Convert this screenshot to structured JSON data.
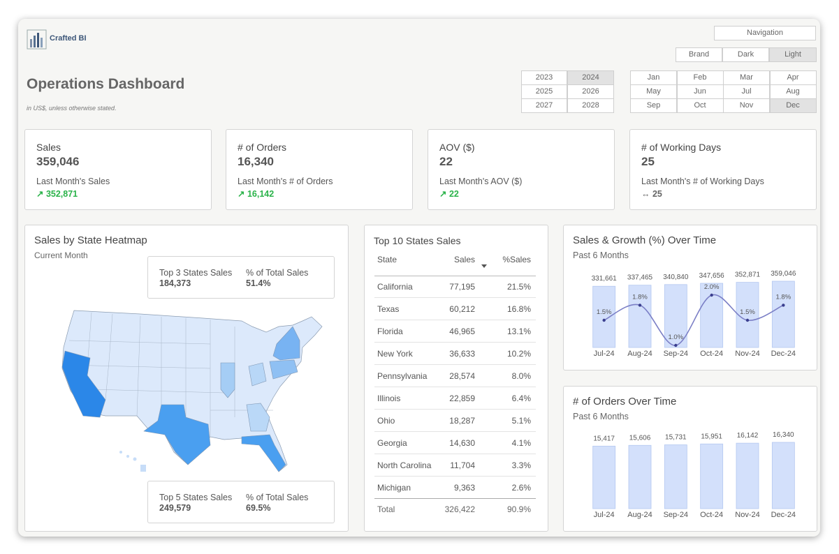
{
  "header": {
    "logo": "Crafted BI",
    "title": "Operations Dashboard",
    "subtitle": "in US$, unless otherwise stated."
  },
  "controls": {
    "navigation": "Navigation",
    "themes": [
      "Brand",
      "Dark",
      "Light"
    ],
    "active_theme": 2,
    "years": [
      "2023",
      "2024",
      "2025",
      "2026",
      "2027",
      "2028"
    ],
    "active_year": 1,
    "months": [
      "Jan",
      "Feb",
      "Mar",
      "Apr",
      "May",
      "Jun",
      "Jul",
      "Aug",
      "Sep",
      "Oct",
      "Nov",
      "Dec"
    ],
    "active_month": 11
  },
  "kpis": [
    {
      "label": "Sales",
      "value": "359,046",
      "previous_label": "Last Month's Sales",
      "previous_value": "↗ 352,871",
      "trend": "up"
    },
    {
      "label": "# of Orders",
      "value": "16,340",
      "previous_label": "Last Month's # of Orders",
      "previous_value": "↗ 16,142",
      "trend": "up"
    },
    {
      "label": "AOV ($)",
      "value": "22",
      "previous_label": "Last Month's AOV ($)",
      "previous_value": "↗ 22",
      "trend": "up"
    },
    {
      "label": "# of Working Days",
      "value": "25",
      "previous_label": "Last Month's # of Working Days",
      "previous_value": "↔ 25",
      "trend": "flat"
    }
  ],
  "heatmap": {
    "title": "Sales by State Heatmap",
    "subtitle": "Current Month",
    "summaries": [
      {
        "labels": [
          "Top 3 States Sales",
          "% of Total Sales"
        ],
        "values": [
          "184,373",
          "51.4%"
        ]
      },
      {
        "labels": [
          "Top 5 States Sales",
          "% of Total Sales"
        ],
        "values": [
          "249,579",
          "69.5%"
        ]
      }
    ]
  },
  "table": {
    "title": "Top 10 States Sales",
    "columns": [
      "State",
      "Sales",
      "%Sales"
    ],
    "sort_column": 1,
    "rows": [
      [
        "California",
        "77,195",
        "21.5%"
      ],
      [
        "Texas",
        "60,212",
        "16.8%"
      ],
      [
        "Florida",
        "46,965",
        "13.1%"
      ],
      [
        "New York",
        "36,633",
        "10.2%"
      ],
      [
        "Pennsylvania",
        "28,574",
        "8.0%"
      ],
      [
        "Illinois",
        "22,859",
        "6.4%"
      ],
      [
        "Ohio",
        "18,287",
        "5.1%"
      ],
      [
        "Georgia",
        "14,630",
        "4.1%"
      ],
      [
        "North Carolina",
        "11,704",
        "3.3%"
      ],
      [
        "Michigan",
        "9,363",
        "2.6%"
      ]
    ],
    "total": [
      "Total",
      "326,422",
      "90.9%"
    ]
  },
  "chart_data": [
    {
      "type": "bar",
      "title": "Sales & Growth (%) Over Time",
      "subtitle": "Past 6 Months",
      "categories": [
        "Jul-24",
        "Aug-24",
        "Sep-24",
        "Oct-24",
        "Nov-24",
        "Dec-24"
      ],
      "series": [
        {
          "type": "bar",
          "color": "#d3e0fb",
          "values": [
            331661,
            337465,
            340840,
            347656,
            352871,
            359046
          ],
          "value_labels": [
            "331,661",
            "337,465",
            "340,840",
            "347,656",
            "352,871",
            "359,046"
          ]
        },
        {
          "type": "line",
          "axis": "y2",
          "color": "#7b7fc6",
          "values": [
            1.5,
            1.8,
            1.0,
            2.0,
            1.5,
            1.8
          ],
          "value_labels": [
            "1.5%",
            "1.8%",
            "1.0%",
            "2.0%",
            "1.5%",
            "1.8%"
          ]
        }
      ]
    },
    {
      "type": "bar",
      "title": "# of Orders Over Time",
      "subtitle": "Past 6 Months",
      "categories": [
        "Jul-24",
        "Aug-24",
        "Sep-24",
        "Oct-24",
        "Nov-24",
        "Dec-24"
      ],
      "series": [
        {
          "type": "bar",
          "color": "#d3e0fb",
          "values": [
            15417,
            15606,
            15731,
            15951,
            16142,
            16340
          ],
          "value_labels": [
            "15,417",
            "15,606",
            "15,731",
            "15,951",
            "16,142",
            "16,340"
          ]
        }
      ]
    }
  ]
}
